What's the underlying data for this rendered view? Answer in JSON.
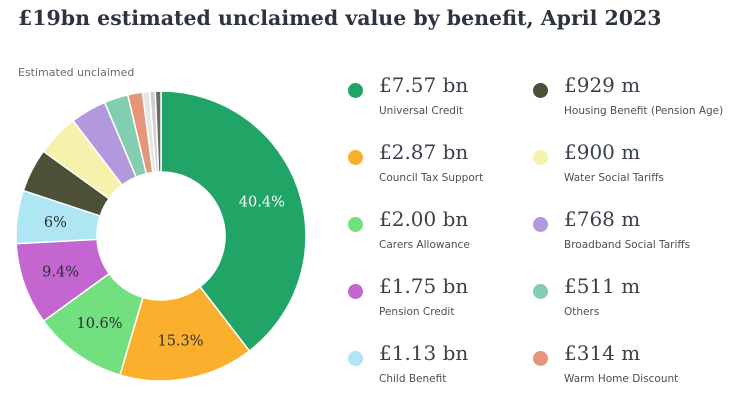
{
  "title": "£19bn estimated unclaimed value by benefit, April 2023",
  "chart_data": {
    "type": "pie",
    "donut": true,
    "subtitle": "Estimated unclaimed",
    "legend_position": "right",
    "slices": [
      {
        "name": "Universal Credit",
        "value": 7.57,
        "display": "£7.57 bn",
        "pct_label": "40.4%",
        "color": "#21a566"
      },
      {
        "name": "Council Tax Support",
        "value": 2.87,
        "display": "£2.87 bn",
        "pct_label": "15.3%",
        "color": "#fbb02d"
      },
      {
        "name": "Carers Allowance",
        "value": 2.0,
        "display": "£2.00 bn",
        "pct_label": "10.6%",
        "color": "#72e07f"
      },
      {
        "name": "Pension Credit",
        "value": 1.75,
        "display": "£1.75 bn",
        "pct_label": "9.4%",
        "color": "#c366cf"
      },
      {
        "name": "Child Benefit",
        "value": 1.13,
        "display": "£1.13 bn",
        "pct_label": "6%",
        "color": "#aee6f4"
      },
      {
        "name": "Housing Benefit (Pension Age)",
        "value": 0.929,
        "display": "£929 m",
        "pct_label": "",
        "color": "#4b5036"
      },
      {
        "name": "Water Social Tariffs",
        "value": 0.9,
        "display": "£900 m",
        "pct_label": "",
        "color": "#f6f1ad"
      },
      {
        "name": "Broadband Social Tariffs",
        "value": 0.768,
        "display": "£768 m",
        "pct_label": "",
        "color": "#b299de"
      },
      {
        "name": "Others",
        "value": 0.511,
        "display": "£511 m",
        "pct_label": "",
        "color": "#83cdb0"
      },
      {
        "name": "Warm Home Discount",
        "value": 0.314,
        "display": "£314 m",
        "pct_label": "",
        "color": "#e3967a"
      }
    ],
    "extra_slices": [
      {
        "value": 0.15,
        "color": "#e6e6e6"
      },
      {
        "value": 0.12,
        "color": "#cfcfcf"
      },
      {
        "value": 0.12,
        "color": "#6b6b6b"
      }
    ]
  }
}
